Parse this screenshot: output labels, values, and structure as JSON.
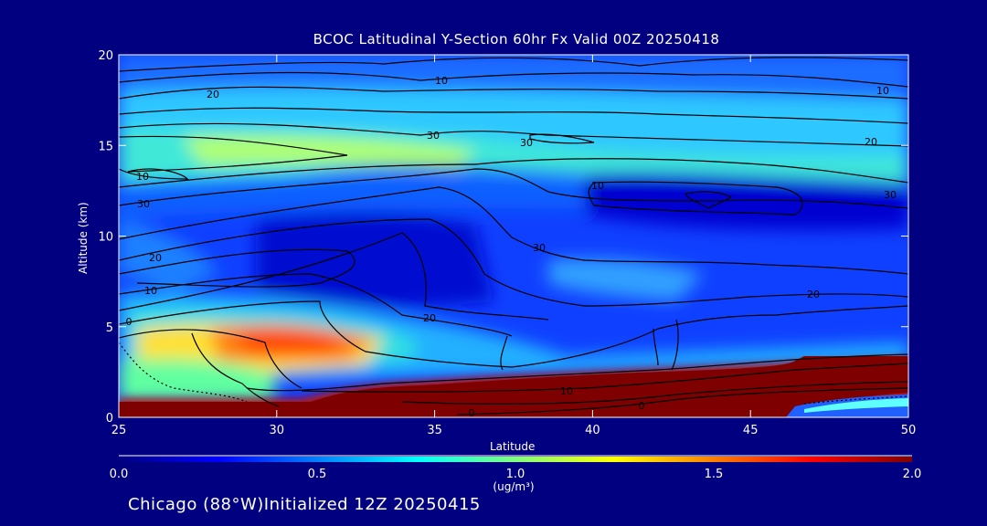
{
  "chart_data": {
    "type": "heatmap",
    "title": "BCOC Latitudinal Y-Section 60hr  Fx Valid 00Z 20250418",
    "xlabel": "Latitude",
    "ylabel": "Altitude (km)",
    "xlim": [
      25,
      50
    ],
    "ylim": [
      0,
      20
    ],
    "x_ticks": [
      "25",
      "30",
      "35",
      "40",
      "45",
      "50"
    ],
    "y_ticks": [
      "0",
      "5",
      "10",
      "15",
      "20"
    ],
    "colorbar": {
      "min": 0.0,
      "max": 2.0,
      "ticks": [
        "0.0",
        "0.5",
        "1.0",
        "1.5",
        "2.0"
      ],
      "units": "(ug/m³)",
      "colors": [
        "#00007f",
        "#0000ff",
        "#0080ff",
        "#00ffff",
        "#80ff80",
        "#ffff00",
        "#ff8000",
        "#ff0000",
        "#7f0000"
      ]
    },
    "contour_labels": [
      "10",
      "20",
      "10",
      "30",
      "30",
      "20",
      "10",
      "30",
      "30",
      "20",
      "10",
      "10",
      "0",
      "20",
      "30",
      "20",
      "0",
      "10",
      "0"
    ]
  },
  "footer": "Chicago (88°W)Initialized 12Z 20250415"
}
